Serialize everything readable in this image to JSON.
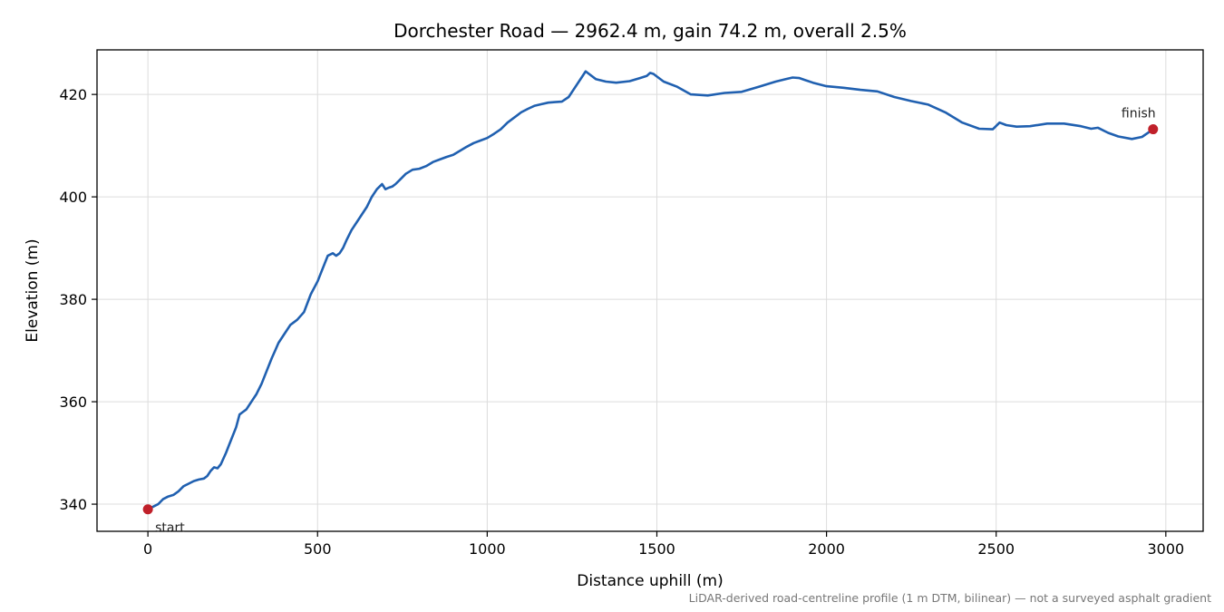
{
  "chart_data": {
    "type": "line",
    "title": "Dorchester Road — 2962.4 m, gain 74.2 m, overall 2.5%",
    "xlabel": "Distance uphill (m)",
    "ylabel": "Elevation (m)",
    "footnote": "LiDAR-derived road-centreline profile (1 m DTM, bilinear) — not a surveyed asphalt gradient",
    "xlim": [
      -150,
      3110
    ],
    "ylim": [
      334.7,
      428.7
    ],
    "xticks": [
      0,
      500,
      1000,
      1500,
      2000,
      2500,
      3000
    ],
    "yticks": [
      340,
      360,
      380,
      400,
      420
    ],
    "grid": true,
    "line_color": "#2060b0",
    "marker_color": "#c0202a",
    "series": [
      {
        "x": [
          0,
          15,
          30,
          45,
          60,
          75,
          90,
          105,
          120,
          135,
          150,
          165,
          175,
          185,
          195,
          205,
          215,
          230,
          245,
          260,
          270,
          280,
          290,
          300,
          310,
          320,
          335,
          350,
          365,
          375,
          385,
          400,
          420,
          440,
          460,
          480,
          500,
          515,
          530,
          545,
          555,
          565,
          575,
          585,
          600,
          615,
          630,
          645,
          660,
          675,
          690,
          700,
          710,
          720,
          730,
          745,
          760,
          780,
          800,
          820,
          840,
          860,
          880,
          900,
          920,
          940,
          960,
          980,
          1000,
          1020,
          1040,
          1060,
          1080,
          1100,
          1120,
          1140,
          1160,
          1180,
          1200,
          1220,
          1240,
          1260,
          1280,
          1290,
          1300,
          1320,
          1350,
          1380,
          1420,
          1450,
          1470,
          1480,
          1490,
          1500,
          1520,
          1560,
          1600,
          1650,
          1700,
          1750,
          1800,
          1850,
          1880,
          1900,
          1920,
          1960,
          2000,
          2050,
          2100,
          2150,
          2200,
          2250,
          2300,
          2350,
          2400,
          2450,
          2490,
          2510,
          2530,
          2560,
          2600,
          2650,
          2700,
          2750,
          2780,
          2800,
          2830,
          2860,
          2900,
          2930,
          2962.4
        ],
        "y": [
          339.0,
          339.5,
          340.0,
          341.0,
          341.5,
          341.8,
          342.5,
          343.5,
          344.0,
          344.5,
          344.8,
          345.0,
          345.5,
          346.5,
          347.2,
          347.0,
          347.8,
          350.0,
          352.5,
          355.0,
          357.5,
          358.0,
          358.5,
          359.5,
          360.5,
          361.5,
          363.5,
          366.0,
          368.5,
          370.0,
          371.5,
          373.0,
          375.0,
          376.0,
          377.5,
          381.0,
          383.5,
          386.0,
          388.5,
          389.0,
          388.5,
          389.0,
          390.0,
          391.5,
          393.5,
          395.0,
          396.5,
          398.0,
          400.0,
          401.5,
          402.5,
          401.5,
          401.8,
          402.0,
          402.5,
          403.5,
          404.5,
          405.3,
          405.5,
          406.0,
          406.8,
          407.3,
          407.8,
          408.2,
          409.0,
          409.8,
          410.5,
          411.0,
          411.5,
          412.3,
          413.2,
          414.5,
          415.5,
          416.5,
          417.2,
          417.8,
          418.1,
          418.4,
          418.5,
          418.6,
          419.5,
          421.5,
          423.5,
          424.5,
          424.0,
          423.0,
          422.5,
          422.3,
          422.6,
          423.2,
          423.6,
          424.2,
          424.0,
          423.5,
          422.5,
          421.5,
          420.0,
          419.8,
          420.3,
          420.5,
          421.5,
          422.5,
          423.0,
          423.3,
          423.2,
          422.3,
          421.6,
          421.3,
          420.9,
          420.6,
          419.5,
          418.7,
          418.0,
          416.5,
          414.5,
          413.3,
          413.2,
          414.5,
          414.0,
          413.7,
          413.8,
          414.3,
          414.3,
          413.8,
          413.3,
          413.5,
          412.5,
          411.8,
          411.3,
          411.7,
          413.2
        ]
      }
    ],
    "markers": [
      {
        "label": "start",
        "x": 0,
        "y": 339.0
      },
      {
        "label": "finish",
        "x": 2962.4,
        "y": 413.2
      }
    ]
  }
}
